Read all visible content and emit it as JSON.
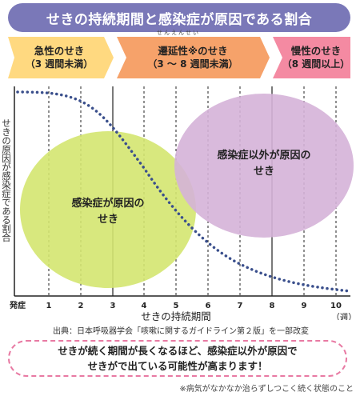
{
  "title": "せきの持続期間と感染症が原因である割合",
  "phases": [
    {
      "name": "急性のせき",
      "range": "（3 週間未満）",
      "color": "#ffd980"
    },
    {
      "name": "遷延性※のせき",
      "range": "（3 ～ 8 週間未満）",
      "color": "#f6a26a",
      "ruby": "せんえんせい"
    },
    {
      "name": "慢性のせき",
      "range": "（8 週間以上）",
      "color": "#f48aa2"
    }
  ],
  "y_axis_label": "せきの原因が感染症である割合",
  "x_axis_title": "せきの持続期間",
  "x_ticks": [
    "発症",
    "1",
    "2",
    "3",
    "4",
    "5",
    "6",
    "7",
    "8",
    "9",
    "10"
  ],
  "x_unit": "（週）",
  "regions": {
    "infection": {
      "line1": "感染症が原因の",
      "line2": "せき",
      "color": "#d4e670"
    },
    "other": {
      "line1": "感染症以外が原因の",
      "line2": "せき",
      "color": "#d5b3d8"
    }
  },
  "source": "出典：日本呼吸器学会「咳嗽に関するガイドライン第２版」を一部改変",
  "message": {
    "line1": "せきが続く期間が長くなるほど、感染症以外が原因で",
    "line2": "せきがで出ている可能性が高まります！",
    "border_color": "#e87aa3"
  },
  "footnote": "※病気がなかなか治らずしつこく続く状態のこと",
  "colors": {
    "title_bg": "#7a78b8",
    "curve": "#3a4f8c",
    "axis": "#222222"
  }
}
